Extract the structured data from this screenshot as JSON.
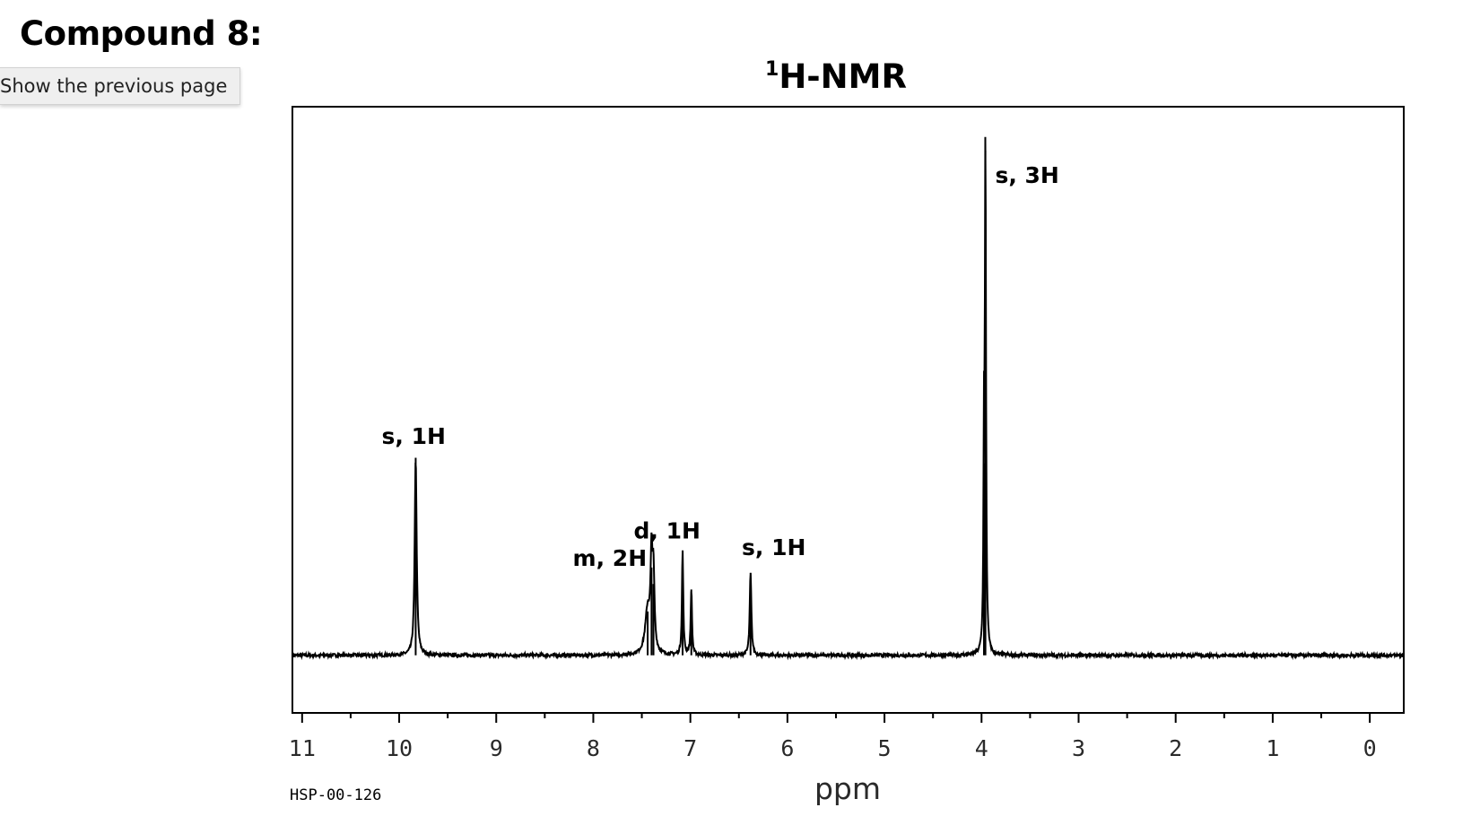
{
  "page": {
    "heading": "Compound 8:",
    "tooltip": "Show the previous page"
  },
  "chart_data": {
    "type": "line",
    "title_superscript": "1",
    "title": "H-NMR",
    "xlabel": "ppm",
    "ylabel": "",
    "spectrum_code": "HSP-00-126",
    "x_reversed": true,
    "xlim": [
      11.1,
      -0.35
    ],
    "ylim": [
      -0.105,
      1.0
    ],
    "x_major_ticks": [
      11,
      10,
      9,
      8,
      7,
      6,
      5,
      4,
      3,
      2,
      1,
      0
    ],
    "x_tick_labels": [
      "11",
      "10",
      "9",
      "8",
      "7",
      "6",
      "5",
      "4",
      "3",
      "2",
      "1",
      "0"
    ],
    "x_minor_ticks": [
      10.5,
      9.5,
      8.5,
      7.5,
      6.5,
      5.5,
      4.5,
      3.5,
      2.5,
      1.5,
      0.5
    ],
    "grid": false,
    "legend": "none",
    "baseline": 0.0,
    "peaks": [
      {
        "shift": 9.83,
        "height": 0.36,
        "width": 0.012
      },
      {
        "shift": 7.44,
        "height": 0.08,
        "width": 0.03
      },
      {
        "shift": 7.4,
        "height": 0.16,
        "width": 0.012
      },
      {
        "shift": 7.38,
        "height": 0.13,
        "width": 0.012
      },
      {
        "shift": 7.08,
        "height": 0.19,
        "width": 0.008
      },
      {
        "shift": 6.99,
        "height": 0.12,
        "width": 0.008
      },
      {
        "shift": 6.38,
        "height": 0.15,
        "width": 0.01
      },
      {
        "shift": 3.96,
        "height": 0.92,
        "width": 0.007
      },
      {
        "shift": 3.975,
        "height": 0.35,
        "width": 0.006
      }
    ],
    "annotations": [
      {
        "text": "s, 1H",
        "x": 9.85,
        "y": 0.385
      },
      {
        "text": "m, 2H",
        "x": 7.83,
        "y": 0.163
      },
      {
        "text": "d, 1H",
        "x": 7.24,
        "y": 0.213
      },
      {
        "text": "s, 1H",
        "x": 6.14,
        "y": 0.183
      },
      {
        "text": "s, 3H",
        "x": 3.53,
        "y": 0.861
      }
    ]
  }
}
